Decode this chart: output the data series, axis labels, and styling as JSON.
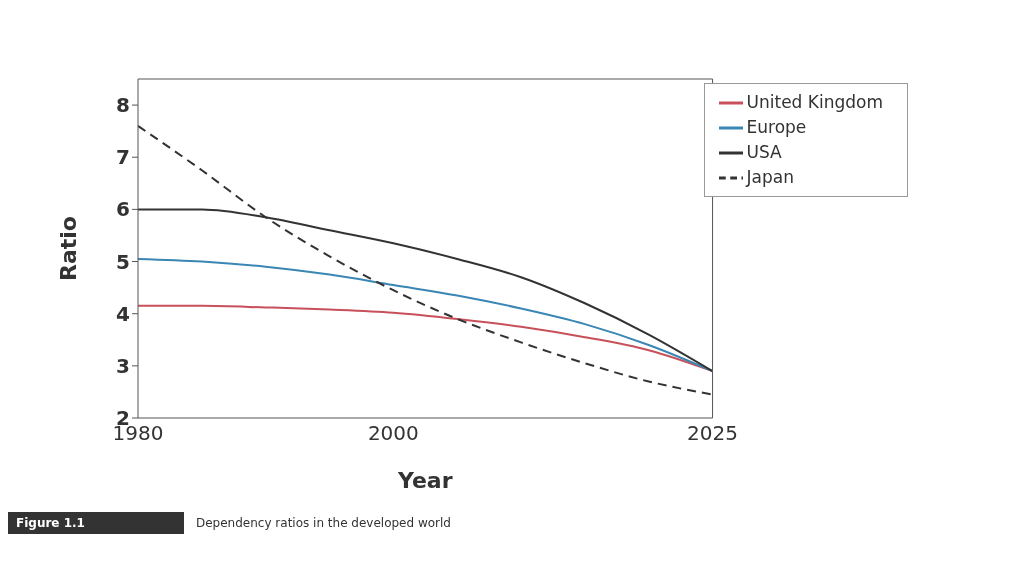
{
  "chart_data": {
    "type": "line",
    "xlabel": "Year",
    "ylabel": "Ratio",
    "x": [
      1980,
      1985,
      1990,
      1995,
      2000,
      2005,
      2010,
      2015,
      2020,
      2025
    ],
    "xlim": [
      1980,
      2025
    ],
    "xticks": [
      1980,
      2000,
      2025
    ],
    "ylim": [
      2,
      8.5
    ],
    "yticks": [
      2,
      3,
      4,
      5,
      6,
      7,
      8
    ],
    "series": [
      {
        "name": "United Kingdom",
        "color": "#c8505a",
        "values": [
          4.15,
          4.15,
          4.12,
          4.08,
          4.02,
          3.9,
          3.75,
          3.55,
          3.3,
          2.9
        ]
      },
      {
        "name": "Europe",
        "color": "#3a86b4",
        "values": [
          5.05,
          5.0,
          4.9,
          4.75,
          4.55,
          4.35,
          4.1,
          3.8,
          3.4,
          2.9
        ]
      },
      {
        "name": "USA",
        "color": "#333333",
        "values": [
          6.0,
          6.0,
          5.85,
          5.6,
          5.35,
          5.05,
          4.7,
          4.2,
          3.6,
          2.9
        ]
      },
      {
        "name": "Japan",
        "color": "#333333",
        "line_style": "dashed",
        "values": [
          7.6,
          6.75,
          5.85,
          5.1,
          4.45,
          3.9,
          3.45,
          3.05,
          2.7,
          2.45
        ]
      }
    ],
    "legend": "top right",
    "grid": false,
    "marker": "none",
    "annotations": [
      "Figure 1.1",
      "Dependency ratios in the developed world"
    ]
  }
}
